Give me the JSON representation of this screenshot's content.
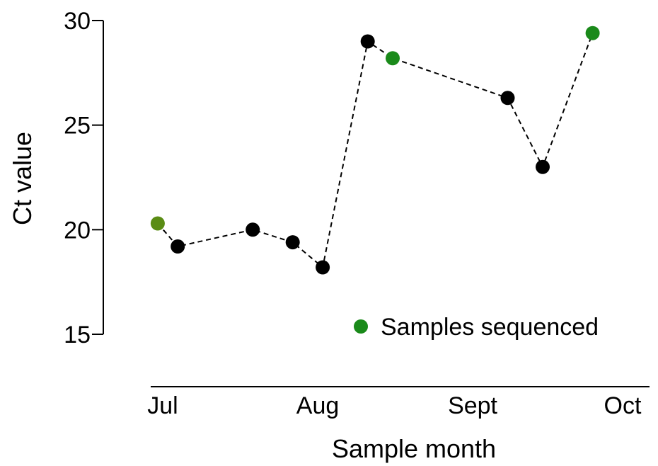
{
  "chart_data": {
    "type": "line",
    "xlabel": "Sample month",
    "ylabel": "Ct value",
    "ylim": [
      15,
      30
    ],
    "yticks": [
      15,
      20,
      25,
      30
    ],
    "x_tick_labels": [
      {
        "label": "Jul",
        "date": "2020-07-01"
      },
      {
        "label": "Aug",
        "date": "2020-08-01"
      },
      {
        "label": "Sept",
        "date": "2020-09-01"
      },
      {
        "label": "Oct",
        "date": "2020-10-01"
      }
    ],
    "xlim": [
      "2020-07-01",
      "2020-10-01"
    ],
    "grid": false,
    "legend": {
      "position": "bottom-right",
      "entries": [
        {
          "label": "Samples sequenced",
          "color": "#1a8a1a"
        }
      ]
    },
    "colors": {
      "sequenced": "#1a8a1a",
      "sequenced_first": "#5a8c14",
      "not_sequenced": "#000000"
    },
    "points": [
      {
        "date": "2020-06-30",
        "y": 20.3,
        "sequenced": true
      },
      {
        "date": "2020-07-04",
        "y": 19.2,
        "sequenced": false
      },
      {
        "date": "2020-07-19",
        "y": 20.0,
        "sequenced": false
      },
      {
        "date": "2020-07-27",
        "y": 19.4,
        "sequenced": false
      },
      {
        "date": "2020-08-02",
        "y": 18.2,
        "sequenced": false
      },
      {
        "date": "2020-08-11",
        "y": 29.0,
        "sequenced": false
      },
      {
        "date": "2020-08-16",
        "y": 28.2,
        "sequenced": true
      },
      {
        "date": "2020-09-08",
        "y": 26.3,
        "sequenced": false
      },
      {
        "date": "2020-09-15",
        "y": 23.0,
        "sequenced": false
      },
      {
        "date": "2020-09-25",
        "y": 29.4,
        "sequenced": true
      }
    ]
  }
}
